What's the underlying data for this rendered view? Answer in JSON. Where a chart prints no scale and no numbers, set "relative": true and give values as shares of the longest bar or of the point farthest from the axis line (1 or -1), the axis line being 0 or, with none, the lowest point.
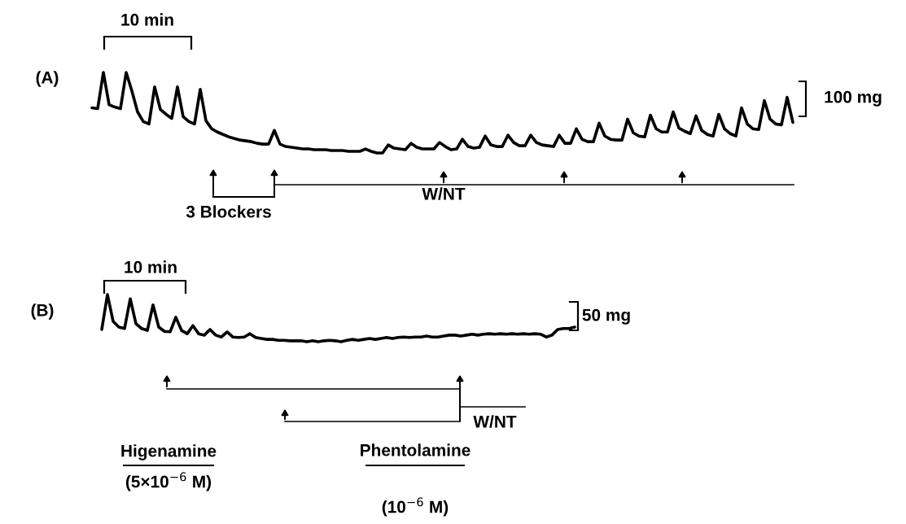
{
  "chart_data": [
    {
      "type": "line",
      "title": "(A)",
      "relative": true,
      "color": "#000000",
      "categories": [
        null,
        null,
        null,
        null,
        null,
        null,
        null,
        null,
        null,
        null,
        null,
        null,
        null,
        null,
        null,
        null,
        null,
        null,
        null,
        null,
        null,
        null,
        null,
        null,
        null,
        null,
        null,
        null,
        null,
        null,
        null,
        null,
        null,
        null,
        null,
        null,
        null,
        null,
        null,
        null,
        null,
        null,
        null,
        null,
        null,
        null,
        null,
        null,
        null,
        null,
        null,
        null,
        null,
        null,
        null,
        null,
        null,
        null,
        null,
        null,
        null,
        null,
        null,
        null,
        null,
        null,
        null,
        null,
        null,
        null,
        null,
        null,
        null,
        null,
        null,
        null,
        null,
        null,
        null,
        null,
        null,
        null,
        null,
        null,
        null,
        null,
        null,
        null,
        null,
        null,
        null,
        null,
        null,
        null,
        null,
        null,
        null,
        null,
        null,
        null,
        null,
        null,
        null,
        null,
        null,
        null,
        null,
        null,
        null,
        null,
        null,
        null,
        null,
        null,
        null,
        null,
        null,
        null,
        null,
        null,
        null,
        null,
        null,
        null
      ],
      "values": [
        0.56,
        0.55,
        1.0,
        0.6,
        0.57,
        0.55,
        1.0,
        0.77,
        0.51,
        0.39,
        0.36,
        0.82,
        0.54,
        0.48,
        0.43,
        0.82,
        0.45,
        0.39,
        0.36,
        0.79,
        0.4,
        0.3,
        0.26,
        0.23,
        0.2,
        0.18,
        0.16,
        0.15,
        0.14,
        0.12,
        0.11,
        0.11,
        0.28,
        0.11,
        0.08,
        0.07,
        0.06,
        0.05,
        0.05,
        0.04,
        0.04,
        0.04,
        0.03,
        0.03,
        0.03,
        0.02,
        0.02,
        0.02,
        0.05,
        0.02,
        0.0,
        0.0,
        0.1,
        0.06,
        0.05,
        0.04,
        0.12,
        0.07,
        0.05,
        0.05,
        0.05,
        0.13,
        0.08,
        0.04,
        0.05,
        0.17,
        0.08,
        0.06,
        0.07,
        0.21,
        0.1,
        0.08,
        0.08,
        0.22,
        0.13,
        0.09,
        0.09,
        0.22,
        0.13,
        0.1,
        0.09,
        0.08,
        0.22,
        0.12,
        0.12,
        0.3,
        0.17,
        0.14,
        0.14,
        0.37,
        0.21,
        0.17,
        0.16,
        0.16,
        0.42,
        0.25,
        0.21,
        0.2,
        0.47,
        0.3,
        0.26,
        0.26,
        0.51,
        0.31,
        0.27,
        0.24,
        0.46,
        0.28,
        0.23,
        0.21,
        0.48,
        0.3,
        0.24,
        0.21,
        0.56,
        0.36,
        0.3,
        0.29,
        0.65,
        0.42,
        0.36,
        0.35,
        0.69,
        0.38
      ],
      "annotations": [
        "10 min",
        "100 mg",
        "3 Blockers",
        "W/NT"
      ]
    },
    {
      "type": "line",
      "title": "(B)",
      "relative": true,
      "color": "#000000",
      "categories": [
        null,
        null,
        null,
        null,
        null,
        null,
        null,
        null,
        null,
        null,
        null,
        null,
        null,
        null,
        null,
        null,
        null,
        null,
        null,
        null,
        null,
        null,
        null,
        null,
        null,
        null,
        null,
        null,
        null,
        null,
        null,
        null,
        null,
        null,
        null,
        null,
        null,
        null,
        null,
        null,
        null,
        null,
        null,
        null,
        null,
        null,
        null,
        null,
        null,
        null,
        null,
        null,
        null,
        null,
        null,
        null,
        null,
        null,
        null,
        null,
        null,
        null,
        null,
        null,
        null,
        null,
        null,
        null,
        null,
        null,
        null,
        null,
        null,
        null,
        null,
        null,
        null,
        null,
        null,
        null,
        null,
        null,
        null,
        null
      ],
      "values": [
        0.26,
        1.0,
        0.43,
        0.31,
        0.28,
        0.91,
        0.38,
        0.28,
        0.24,
        0.78,
        0.31,
        0.22,
        0.21,
        0.52,
        0.24,
        0.17,
        0.34,
        0.17,
        0.14,
        0.26,
        0.14,
        0.1,
        0.21,
        0.1,
        0.09,
        0.1,
        0.17,
        0.09,
        0.07,
        0.05,
        0.05,
        0.03,
        0.03,
        0.02,
        0.02,
        0.02,
        0.0,
        0.02,
        0.0,
        0.02,
        0.03,
        0.02,
        0.0,
        0.03,
        0.05,
        0.03,
        0.05,
        0.07,
        0.05,
        0.07,
        0.09,
        0.07,
        0.09,
        0.1,
        0.09,
        0.1,
        0.1,
        0.12,
        0.1,
        0.1,
        0.12,
        0.14,
        0.14,
        0.12,
        0.14,
        0.16,
        0.14,
        0.16,
        0.17,
        0.16,
        0.17,
        0.16,
        0.17,
        0.16,
        0.17,
        0.16,
        0.17,
        0.16,
        0.1,
        0.14,
        0.26,
        0.28,
        0.28,
        0.31
      ],
      "annotations": [
        "10 min",
        "50 mg",
        "Higenamine",
        "(5×10$^{−6}$ M)",
        "Phentolamine",
        "(10$^{−6}$ M)",
        "W/NT"
      ]
    }
  ]
}
